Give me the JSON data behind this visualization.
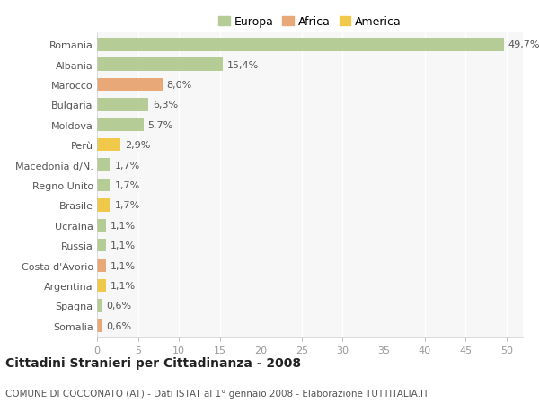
{
  "categories": [
    "Romania",
    "Albania",
    "Marocco",
    "Bulgaria",
    "Moldova",
    "Perù",
    "Macedonia d/N.",
    "Regno Unito",
    "Brasile",
    "Ucraina",
    "Russia",
    "Costa d'Avorio",
    "Argentina",
    "Spagna",
    "Somalia"
  ],
  "values": [
    49.7,
    15.4,
    8.0,
    6.3,
    5.7,
    2.9,
    1.7,
    1.7,
    1.7,
    1.1,
    1.1,
    1.1,
    1.1,
    0.6,
    0.6
  ],
  "labels": [
    "49,7%",
    "15,4%",
    "8,0%",
    "6,3%",
    "5,7%",
    "2,9%",
    "1,7%",
    "1,7%",
    "1,7%",
    "1,1%",
    "1,1%",
    "1,1%",
    "1,1%",
    "0,6%",
    "0,6%"
  ],
  "continent": [
    "Europa",
    "Europa",
    "Africa",
    "Europa",
    "Europa",
    "America",
    "Europa",
    "Europa",
    "America",
    "Europa",
    "Europa",
    "Africa",
    "America",
    "Europa",
    "Africa"
  ],
  "colors": {
    "Europa": "#b5cc96",
    "Africa": "#e8a878",
    "America": "#f0c84a"
  },
  "legend_order": [
    "Europa",
    "Africa",
    "America"
  ],
  "title": "Cittadini Stranieri per Cittadinanza - 2008",
  "subtitle": "COMUNE DI COCCONATO (AT) - Dati ISTAT al 1° gennaio 2008 - Elaborazione TUTTITALIA.IT",
  "xlim": [
    0,
    52
  ],
  "xticks": [
    0,
    5,
    10,
    15,
    20,
    25,
    30,
    35,
    40,
    45,
    50
  ],
  "background_color": "#ffffff",
  "plot_bg_color": "#f7f7f7",
  "grid_color": "#ffffff",
  "bar_height": 0.65,
  "title_fontsize": 10,
  "subtitle_fontsize": 7.5,
  "tick_fontsize": 8,
  "label_fontsize": 8,
  "legend_fontsize": 9
}
